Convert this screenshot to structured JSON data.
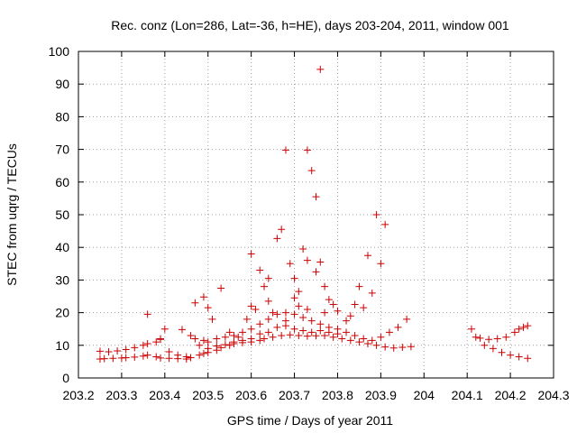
{
  "chart_data": {
    "type": "scatter",
    "title": "Rec. conz (Lon=286, Lat=-36, h=HE), days 203-204, 2011, window 001",
    "xlabel": "GPS time / Days of year 2011",
    "ylabel": "STEC from uqrg / TECUs",
    "xlim": [
      203.2,
      204.3
    ],
    "ylim": [
      0,
      100
    ],
    "xticks": [
      203.2,
      203.3,
      203.4,
      203.5,
      203.6,
      203.7,
      203.8,
      203.9,
      204,
      204.1,
      204.2,
      204.3
    ],
    "xtick_labels": [
      "203.2",
      "203.3",
      "203.4",
      "203.5",
      "203.6",
      "203.7",
      "203.8",
      "203.9",
      "204",
      "204.1",
      "204.2",
      "204.3"
    ],
    "yticks": [
      0,
      10,
      20,
      30,
      40,
      50,
      60,
      70,
      80,
      90,
      100
    ],
    "ytick_labels": [
      "0",
      "10",
      "20",
      "30",
      "40",
      "50",
      "60",
      "70",
      "80",
      "90",
      "100"
    ],
    "grid": true,
    "marker": "plus",
    "color": "#cc0000",
    "points": [
      [
        203.25,
        5.8
      ],
      [
        203.26,
        5.9
      ],
      [
        203.28,
        6.0
      ],
      [
        203.3,
        6.1
      ],
      [
        203.31,
        6.2
      ],
      [
        203.33,
        6.4
      ],
      [
        203.35,
        6.7
      ],
      [
        203.36,
        7.0
      ],
      [
        203.38,
        6.5
      ],
      [
        203.39,
        6.1
      ],
      [
        203.41,
        6.0
      ],
      [
        203.43,
        5.9
      ],
      [
        203.45,
        5.8
      ],
      [
        203.46,
        6.2
      ],
      [
        203.48,
        7.0
      ],
      [
        203.49,
        7.5
      ],
      [
        203.5,
        7.8
      ],
      [
        203.52,
        8.5
      ],
      [
        203.53,
        9.3
      ],
      [
        203.55,
        10.0
      ],
      [
        203.56,
        10.5
      ],
      [
        203.58,
        10.8
      ],
      [
        203.6,
        11.0
      ],
      [
        203.62,
        11.5
      ],
      [
        203.63,
        12.0
      ],
      [
        203.65,
        12.5
      ],
      [
        203.67,
        13.0
      ],
      [
        203.69,
        13.2
      ],
      [
        203.71,
        13.0
      ],
      [
        203.73,
        12.8
      ],
      [
        203.75,
        12.9
      ],
      [
        203.77,
        13.0
      ],
      [
        203.79,
        12.5
      ],
      [
        203.81,
        12.0
      ],
      [
        203.83,
        11.5
      ],
      [
        203.85,
        11.0
      ],
      [
        203.87,
        10.5
      ],
      [
        203.89,
        10.0
      ],
      [
        203.91,
        9.5
      ],
      [
        203.93,
        9.2
      ],
      [
        203.95,
        9.4
      ],
      [
        203.97,
        9.6
      ],
      [
        203.25,
        8.2
      ],
      [
        203.27,
        8.0
      ],
      [
        203.29,
        8.3
      ],
      [
        203.31,
        8.7
      ],
      [
        203.33,
        9.3
      ],
      [
        203.35,
        10.0
      ],
      [
        203.36,
        10.5
      ],
      [
        203.38,
        11.0
      ],
      [
        203.39,
        11.8
      ],
      [
        203.4,
        15.0
      ],
      [
        203.44,
        14.8
      ],
      [
        203.46,
        13.0
      ],
      [
        203.47,
        12.0
      ],
      [
        203.49,
        11.5
      ],
      [
        203.5,
        11.0
      ],
      [
        203.52,
        12.0
      ],
      [
        203.54,
        12.5
      ],
      [
        203.56,
        13.0
      ],
      [
        203.58,
        14.0
      ],
      [
        203.6,
        15.0
      ],
      [
        203.62,
        16.5
      ],
      [
        203.64,
        18.0
      ],
      [
        203.66,
        19.5
      ],
      [
        203.68,
        20.0
      ],
      [
        203.7,
        19.5
      ],
      [
        203.72,
        18.5
      ],
      [
        203.74,
        17.5
      ],
      [
        203.76,
        16.5
      ],
      [
        203.78,
        15.5
      ],
      [
        203.8,
        15.0
      ],
      [
        203.82,
        14.0
      ],
      [
        203.84,
        13.0
      ],
      [
        203.86,
        12.0
      ],
      [
        203.88,
        11.5
      ],
      [
        203.9,
        12.5
      ],
      [
        203.92,
        14.0
      ],
      [
        203.94,
        15.5
      ],
      [
        203.96,
        18.0
      ],
      [
        203.36,
        19.5
      ],
      [
        203.39,
        12.0
      ],
      [
        203.41,
        8.0
      ],
      [
        203.43,
        7.0
      ],
      [
        203.45,
        6.5
      ],
      [
        203.47,
        23.0
      ],
      [
        203.49,
        24.8
      ],
      [
        203.5,
        21.5
      ],
      [
        203.51,
        18.0
      ],
      [
        203.53,
        27.5
      ],
      [
        203.55,
        14.0
      ],
      [
        203.57,
        12.5
      ],
      [
        203.59,
        18.0
      ],
      [
        203.6,
        22.0
      ],
      [
        203.6,
        38.0
      ],
      [
        203.61,
        21.0
      ],
      [
        203.62,
        33.0
      ],
      [
        203.63,
        28.0
      ],
      [
        203.64,
        23.5
      ],
      [
        203.64,
        30.5
      ],
      [
        203.65,
        20.0
      ],
      [
        203.66,
        42.7
      ],
      [
        203.67,
        45.5
      ],
      [
        203.68,
        17.5
      ],
      [
        203.68,
        69.8
      ],
      [
        203.69,
        35.0
      ],
      [
        203.7,
        24.5
      ],
      [
        203.7,
        30.5
      ],
      [
        203.71,
        22.0
      ],
      [
        203.71,
        26.5
      ],
      [
        203.72,
        39.5
      ],
      [
        203.73,
        21.0
      ],
      [
        203.73,
        36.0
      ],
      [
        203.73,
        69.8
      ],
      [
        203.74,
        63.5
      ],
      [
        203.75,
        32.5
      ],
      [
        203.75,
        55.5
      ],
      [
        203.76,
        35.5
      ],
      [
        203.76,
        94.5
      ],
      [
        203.77,
        28.0
      ],
      [
        203.77,
        20.0
      ],
      [
        203.78,
        24.0
      ],
      [
        203.79,
        22.5
      ],
      [
        203.8,
        20.5
      ],
      [
        203.82,
        17.5
      ],
      [
        203.83,
        19.0
      ],
      [
        203.84,
        22.5
      ],
      [
        203.85,
        28.0
      ],
      [
        203.86,
        21.5
      ],
      [
        203.87,
        37.5
      ],
      [
        203.88,
        26.0
      ],
      [
        203.89,
        50.0
      ],
      [
        203.9,
        35.0
      ],
      [
        203.91,
        47.0
      ],
      [
        203.48,
        10.0
      ],
      [
        203.5,
        9.0
      ],
      [
        203.52,
        9.8
      ],
      [
        203.54,
        10.2
      ],
      [
        203.56,
        11.0
      ],
      [
        203.58,
        11.5
      ],
      [
        203.6,
        12.0
      ],
      [
        203.62,
        13.5
      ],
      [
        203.64,
        14.0
      ],
      [
        203.66,
        15.5
      ],
      [
        203.68,
        16.0
      ],
      [
        203.7,
        15.0
      ],
      [
        203.72,
        14.5
      ],
      [
        203.74,
        14.0
      ],
      [
        203.76,
        14.5
      ],
      [
        203.78,
        14.0
      ],
      [
        203.8,
        13.5
      ],
      [
        204.11,
        15.0
      ],
      [
        204.12,
        12.5
      ],
      [
        204.13,
        12.2
      ],
      [
        204.14,
        10.0
      ],
      [
        204.15,
        11.8
      ],
      [
        204.16,
        9.0
      ],
      [
        204.17,
        12.0
      ],
      [
        204.18,
        7.8
      ],
      [
        204.19,
        12.5
      ],
      [
        204.2,
        7.0
      ],
      [
        204.21,
        14.0
      ],
      [
        204.22,
        6.5
      ],
      [
        204.22,
        15.0
      ],
      [
        204.23,
        15.5
      ],
      [
        204.24,
        6.0
      ],
      [
        204.24,
        16.0
      ]
    ]
  }
}
